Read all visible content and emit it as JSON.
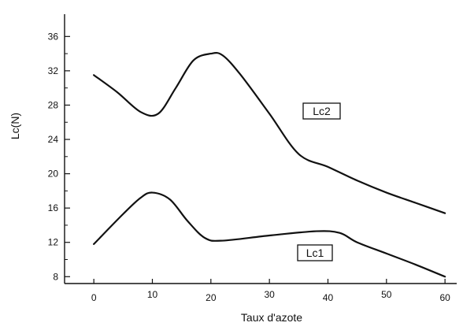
{
  "chart_data": {
    "type": "line",
    "title": "",
    "xlabel": "Taux d'azote",
    "ylabel": "Lc(N)",
    "xlim": [
      -5,
      62
    ],
    "ylim": [
      7.2,
      38.6
    ],
    "xticks": [
      0,
      10,
      20,
      30,
      40,
      50,
      60
    ],
    "yticks": [
      8,
      12,
      16,
      20,
      24,
      28,
      32,
      36
    ],
    "grid": false,
    "legend": "none",
    "series": [
      {
        "name": "Lc2",
        "color": "#111111",
        "x": [
          0,
          4,
          8,
          11,
          14,
          17,
          20,
          22,
          25,
          30,
          35,
          40,
          45,
          50,
          55,
          60
        ],
        "y": [
          31.5,
          29.5,
          27.2,
          27.0,
          30.0,
          33.2,
          34.0,
          33.8,
          31.6,
          27.0,
          22.3,
          20.8,
          19.2,
          17.8,
          16.6,
          15.4
        ]
      },
      {
        "name": "Lc1",
        "color": "#111111",
        "x": [
          0,
          5,
          8,
          10,
          13,
          16,
          19,
          22,
          30,
          38,
          42,
          45,
          50,
          55,
          60
        ],
        "y": [
          11.8,
          15.3,
          17.2,
          17.8,
          17.0,
          14.5,
          12.5,
          12.2,
          12.8,
          13.3,
          13.1,
          12.0,
          10.7,
          9.4,
          8.0
        ]
      }
    ]
  }
}
